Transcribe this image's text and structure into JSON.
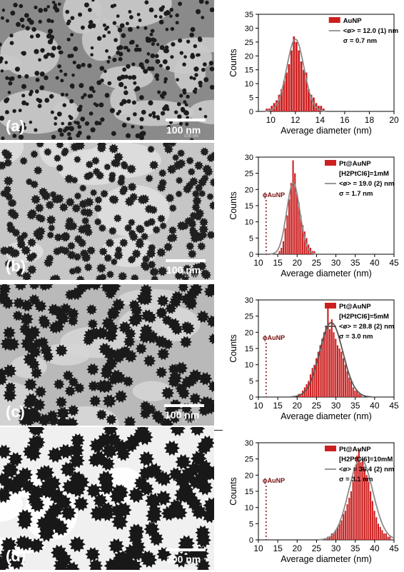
{
  "panels": [
    {
      "label": "(a)",
      "scale_text": "100 nm",
      "scale_small": "100 nm",
      "legend": [
        "AuNP",
        "<ø> = 12.0 (1) nm",
        "σ = 0.7 nm"
      ],
      "marker": ""
    },
    {
      "label": "(b)",
      "scale_text": "100 nm",
      "scale_small": "100 nm",
      "legend": [
        "Pt@AuNP",
        "[H2PtCl6]=1mM",
        "<ø> = 19.0 (2) nm",
        "σ = 1.7 nm"
      ],
      "marker": "ϕAuNP"
    },
    {
      "label": "(c)",
      "scale_text": "100 nm",
      "scale_small": "100 nm",
      "legend": [
        "Pt@AuNP",
        "[H2PtCl6]=5mM",
        "<ø> = 28.8 (2) nm",
        "σ = 3.0 nm"
      ],
      "marker": "ϕAuNP"
    },
    {
      "label": "(d)",
      "scale_text": "100 nm",
      "scale_small": "100 nm",
      "legend": [
        "Pt@AuNP",
        "[H2PtCl6]=10mM",
        "<ø> = 36.4 (2) nm",
        "σ = 3.1 nm"
      ],
      "marker": "ϕAuNP"
    }
  ],
  "chart_data": [
    {
      "type": "bar",
      "xlabel": "Average diameter (nm)",
      "ylabel": "Counts",
      "xlim": [
        9,
        20
      ],
      "ylim": [
        0,
        35
      ],
      "xticks": [
        10,
        12,
        14,
        16,
        18,
        20
      ],
      "yticks": [
        0,
        5,
        10,
        15,
        20,
        25,
        30,
        35
      ],
      "bin_width": 0.2,
      "colors": {
        "bar": "#cc1f1f",
        "fit": "#8c8c8c"
      },
      "series": [
        {
          "name": "AuNP",
          "x": [
            9.7,
            9.9,
            10.1,
            10.3,
            10.5,
            10.7,
            10.9,
            11.1,
            11.3,
            11.5,
            11.7,
            11.9,
            12.1,
            12.3,
            12.5,
            12.7,
            12.9,
            13.1,
            13.3,
            13.5,
            13.7,
            13.9,
            14.1,
            14.3
          ],
          "values": [
            1,
            1,
            2,
            3,
            4,
            6,
            8,
            11,
            14,
            17,
            22,
            27,
            25,
            22,
            18,
            15,
            14,
            8,
            6,
            5,
            3,
            2,
            2,
            1
          ]
        }
      ],
      "fit": {
        "mean": 12.0,
        "sigma": 0.7,
        "peak": 26
      }
    },
    {
      "type": "bar",
      "xlabel": "Average diameter (nm)",
      "ylabel": "Counts",
      "xlim": [
        10,
        45
      ],
      "ylim": [
        0,
        30
      ],
      "xticks": [
        10,
        15,
        20,
        25,
        30,
        35,
        40,
        45
      ],
      "yticks": [
        0,
        5,
        10,
        15,
        20,
        25,
        30
      ],
      "bin_width": 0.5,
      "colors": {
        "bar": "#cc1f1f",
        "fit": "#8c8c8c"
      },
      "series": [
        {
          "name": "Pt@AuNP",
          "x": [
            15.5,
            16.0,
            16.5,
            17.0,
            17.5,
            18.0,
            18.5,
            19.0,
            19.5,
            20.0,
            20.5,
            21.0,
            21.5,
            22.0,
            22.5,
            23.0,
            23.5,
            24.0,
            24.5
          ],
          "values": [
            1,
            2,
            4,
            8,
            12,
            17,
            22,
            29,
            25,
            19,
            16,
            12,
            9,
            7,
            5,
            3,
            2,
            1,
            1
          ]
        }
      ],
      "fit": {
        "mean": 19.0,
        "sigma": 1.7,
        "peak": 22
      }
    },
    {
      "type": "bar",
      "xlabel": "Average diameter (nm)",
      "ylabel": "Counts",
      "xlim": [
        10,
        45
      ],
      "ylim": [
        0,
        30
      ],
      "xticks": [
        10,
        15,
        20,
        25,
        30,
        35,
        40,
        45
      ],
      "yticks": [
        0,
        5,
        10,
        15,
        20,
        25,
        30
      ],
      "bin_width": 0.5,
      "colors": {
        "bar": "#cc1f1f",
        "fit": "#555555"
      },
      "series": [
        {
          "name": "Pt@AuNP",
          "x": [
            20.5,
            21.0,
            21.5,
            22.0,
            22.5,
            23.0,
            23.5,
            24.0,
            24.5,
            25.0,
            25.5,
            26.0,
            26.5,
            27.0,
            27.5,
            28.0,
            28.5,
            29.0,
            29.5,
            30.0,
            30.5,
            31.0,
            31.5,
            32.0,
            32.5,
            33.0,
            33.5,
            34.0,
            34.5,
            35.0,
            35.5,
            36.0,
            36.5
          ],
          "values": [
            1,
            1,
            2,
            3,
            4,
            5,
            7,
            9,
            10,
            12,
            14,
            16,
            18,
            20,
            22,
            28,
            21,
            24,
            20,
            18,
            16,
            15,
            14,
            12,
            10,
            8,
            6,
            5,
            3,
            2,
            2,
            1,
            1
          ]
        }
      ],
      "fit": {
        "mean": 28.8,
        "sigma": 3.0,
        "peak": 23
      }
    },
    {
      "type": "bar",
      "xlabel": "Average diameter (nm)",
      "ylabel": "Counts",
      "xlim": [
        10,
        45
      ],
      "ylim": [
        0,
        30
      ],
      "xticks": [
        10,
        15,
        20,
        25,
        30,
        35,
        40,
        45
      ],
      "yticks": [
        0,
        5,
        10,
        15,
        20,
        25,
        30
      ],
      "bin_width": 0.5,
      "colors": {
        "bar": "#cc1f1f",
        "fit": "#8c8c8c"
      },
      "series": [
        {
          "name": "Pt@AuNP",
          "x": [
            28.0,
            28.5,
            29.0,
            29.5,
            30.0,
            30.5,
            31.0,
            31.5,
            32.0,
            32.5,
            33.0,
            33.5,
            34.0,
            34.5,
            35.0,
            35.5,
            36.0,
            36.5,
            37.0,
            37.5,
            38.0,
            38.5,
            39.0,
            39.5,
            40.0,
            40.5,
            41.0,
            41.5,
            42.0,
            42.5,
            43.0,
            43.5,
            44.0
          ],
          "values": [
            1,
            1,
            2,
            2,
            3,
            4,
            5,
            6,
            8,
            9,
            11,
            13,
            15,
            18,
            22,
            26,
            28,
            24,
            25,
            22,
            20,
            18,
            15,
            12,
            9,
            7,
            5,
            4,
            3,
            2,
            2,
            1,
            1
          ]
        }
      ],
      "fit": {
        "mean": 36.4,
        "sigma": 3.1,
        "peak": 25
      }
    }
  ]
}
